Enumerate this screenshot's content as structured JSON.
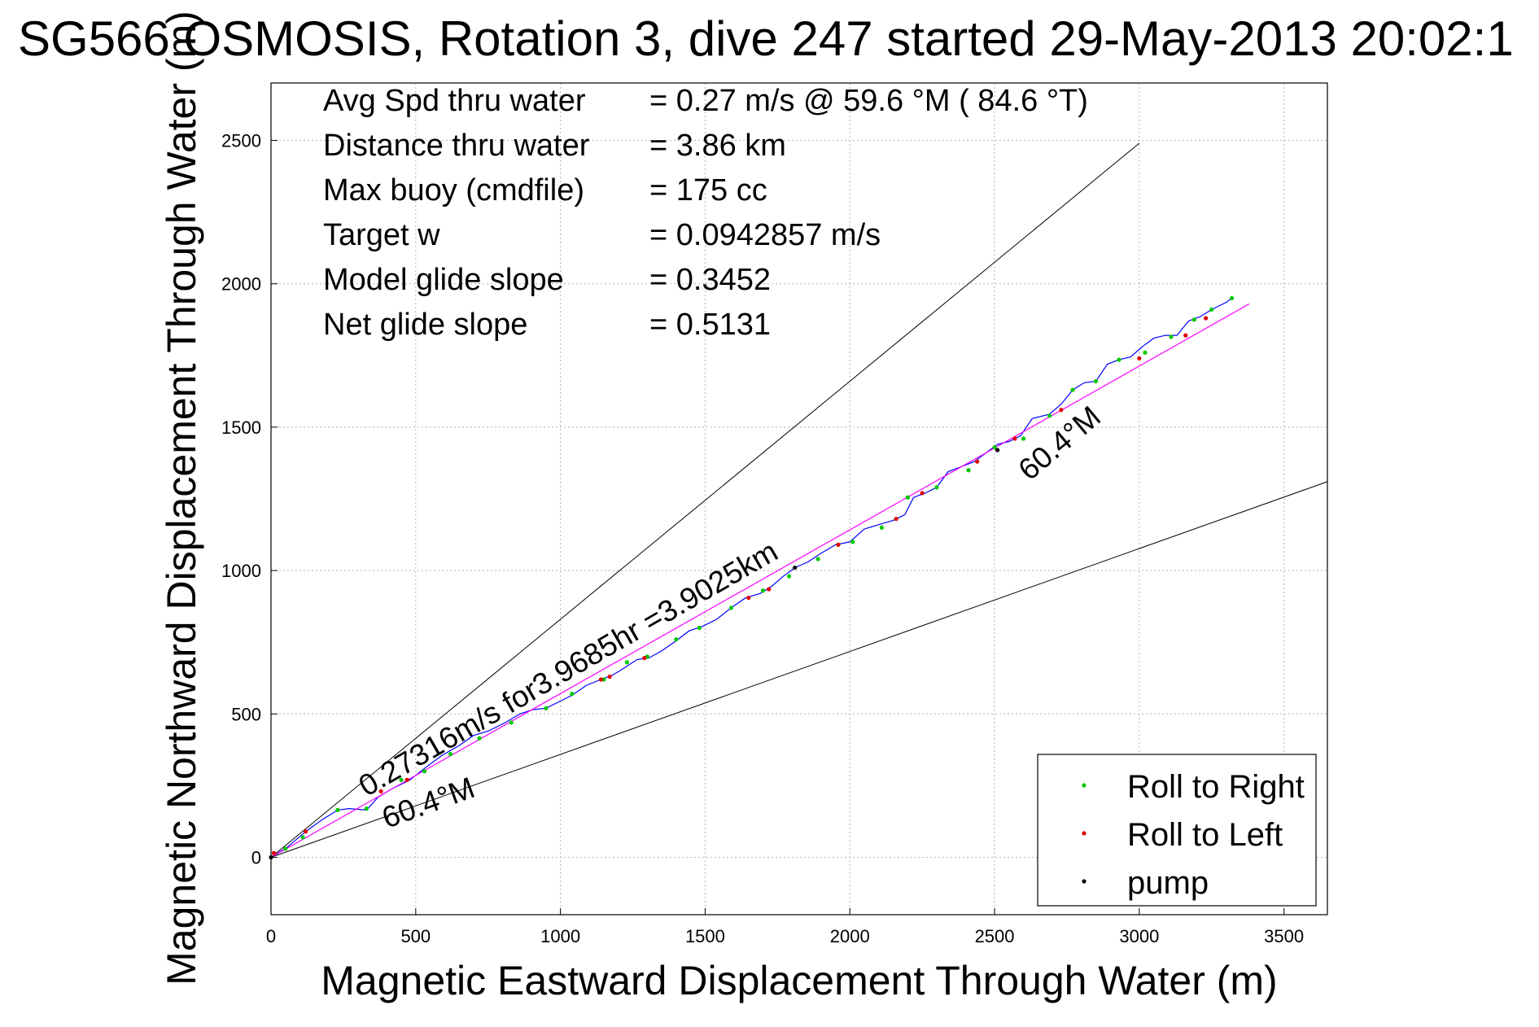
{
  "chart_data": {
    "type": "line",
    "title": "SG566 OSMOSIS, Rotation 3, dive 247 started 29-May-2013 20:02:1",
    "xlabel": "Magnetic Eastward Displacement Through Water (m)",
    "ylabel": "Magnetic Northward Displacement Through Water (m)",
    "xlim": [
      0,
      3650
    ],
    "ylim": [
      -200,
      2700
    ],
    "xticks": [
      "0",
      "500",
      "1000",
      "1500",
      "2000",
      "2500",
      "3000",
      "3500"
    ],
    "yticks": [
      "0",
      "500",
      "1000",
      "1500",
      "2000",
      "2500"
    ],
    "xtick_values": [
      0,
      500,
      1000,
      1500,
      2000,
      2500,
      3000,
      3500
    ],
    "ytick_values": [
      0,
      500,
      1000,
      1500,
      2000,
      2500
    ],
    "grid": true,
    "stats": [
      {
        "label": "Avg Spd thru water",
        "value": "=  0.27 m/s @  59.6 °M ( 84.6 °T)"
      },
      {
        "label": "Distance thru water",
        "value": "=  3.86 km"
      },
      {
        "label": "Max buoy (cmdfile)",
        "value": "= 175 cc"
      },
      {
        "label": "Target w",
        "value": "= 0.0942857 m/s"
      },
      {
        "label": "Model glide slope",
        "value": "= 0.3452"
      },
      {
        "label": "Net glide slope",
        "value": "= 0.5131"
      }
    ],
    "annotations": [
      {
        "text": "0.27316m/s for3.9685hr =3.9025km",
        "x": 330,
        "y": 210,
        "angle_deg": 30.1
      },
      {
        "text": "60.4°M",
        "x": 400,
        "y": 100,
        "angle_deg": 20.0
      },
      {
        "text": "60.4°M",
        "x": 2620,
        "y": 1310,
        "angle_deg": 40.0
      }
    ],
    "reference_lines": [
      {
        "x": [
          0,
          3000
        ],
        "y": [
          0,
          2490
        ],
        "color": "#000000"
      },
      {
        "x": [
          0,
          3650
        ],
        "y": [
          0,
          1310
        ],
        "color": "#000000"
      }
    ],
    "series": [
      {
        "name": "",
        "color": "#0000ff",
        "x": [
          0,
          55,
          120,
          175,
          230,
          270,
          330,
          370,
          420,
          480,
          530,
          590,
          650,
          700,
          750,
          810,
          860,
          905,
          950,
          1000,
          1040,
          1090,
          1140,
          1180,
          1220,
          1265,
          1305,
          1350,
          1400,
          1445,
          1490,
          1540,
          1590,
          1640,
          1690,
          1730,
          1770,
          1810,
          1855,
          1900,
          1950,
          2000,
          2050,
          2100,
          2150,
          2190,
          2220,
          2260,
          2300,
          2340,
          2380,
          2430,
          2470,
          2510,
          2550,
          2590,
          2630,
          2690,
          2730,
          2770,
          2810,
          2850,
          2890,
          2930,
          2970,
          3010,
          3050,
          3090,
          3130,
          3170,
          3210,
          3250,
          3300,
          3320
        ],
        "y": [
          0,
          35,
          90,
          130,
          165,
          170,
          165,
          210,
          240,
          270,
          310,
          355,
          390,
          425,
          440,
          470,
          500,
          515,
          520,
          545,
          565,
          600,
          620,
          635,
          660,
          690,
          695,
          720,
          755,
          790,
          805,
          830,
          870,
          905,
          920,
          945,
          980,
          1010,
          1030,
          1060,
          1090,
          1100,
          1145,
          1160,
          1175,
          1195,
          1255,
          1270,
          1290,
          1345,
          1360,
          1380,
          1410,
          1440,
          1450,
          1470,
          1530,
          1545,
          1580,
          1630,
          1655,
          1660,
          1720,
          1735,
          1745,
          1780,
          1810,
          1820,
          1820,
          1870,
          1885,
          1910,
          1935,
          1950
        ]
      },
      {
        "name": "",
        "color": "#ff00ff",
        "x": [
          0,
          3380
        ],
        "y": [
          0,
          1930
        ]
      },
      {
        "name": "Roll to Right",
        "color": "#00c800",
        "marker": "dot",
        "x": [
          50,
          110,
          230,
          330,
          450,
          530,
          620,
          720,
          830,
          950,
          1040,
          1150,
          1230,
          1300,
          1400,
          1480,
          1590,
          1700,
          1790,
          1890,
          2010,
          2110,
          2200,
          2300,
          2410,
          2500,
          2600,
          2690,
          2770,
          2850,
          2930,
          3020,
          3110,
          3190,
          3250,
          3320
        ],
        "y": [
          30,
          70,
          165,
          170,
          270,
          300,
          360,
          415,
          470,
          520,
          570,
          620,
          680,
          700,
          760,
          800,
          870,
          930,
          980,
          1040,
          1100,
          1150,
          1255,
          1290,
          1350,
          1430,
          1460,
          1540,
          1630,
          1660,
          1735,
          1760,
          1815,
          1875,
          1910,
          1950
        ]
      },
      {
        "name": "Roll to Left",
        "color": "#e00000",
        "marker": "dot",
        "x": [
          10,
          120,
          380,
          470,
          1140,
          1170,
          1290,
          1650,
          1720,
          1960,
          2160,
          2250,
          2440,
          2570,
          2730,
          3000,
          3160,
          3230
        ],
        "y": [
          15,
          90,
          230,
          270,
          620,
          630,
          695,
          905,
          935,
          1090,
          1180,
          1270,
          1380,
          1460,
          1560,
          1740,
          1820,
          1880
        ]
      },
      {
        "name": "pump",
        "color": "#000000",
        "marker": "dot",
        "x": [
          0,
          1810,
          2510
        ],
        "y": [
          0,
          1010,
          1420
        ]
      }
    ],
    "legend": {
      "position": "bottom-right",
      "entries": [
        {
          "label": "Roll to Right",
          "color": "#00c800"
        },
        {
          "label": "Roll to Left",
          "color": "#e00000"
        },
        {
          "label": "pump",
          "color": "#000000"
        }
      ]
    }
  }
}
